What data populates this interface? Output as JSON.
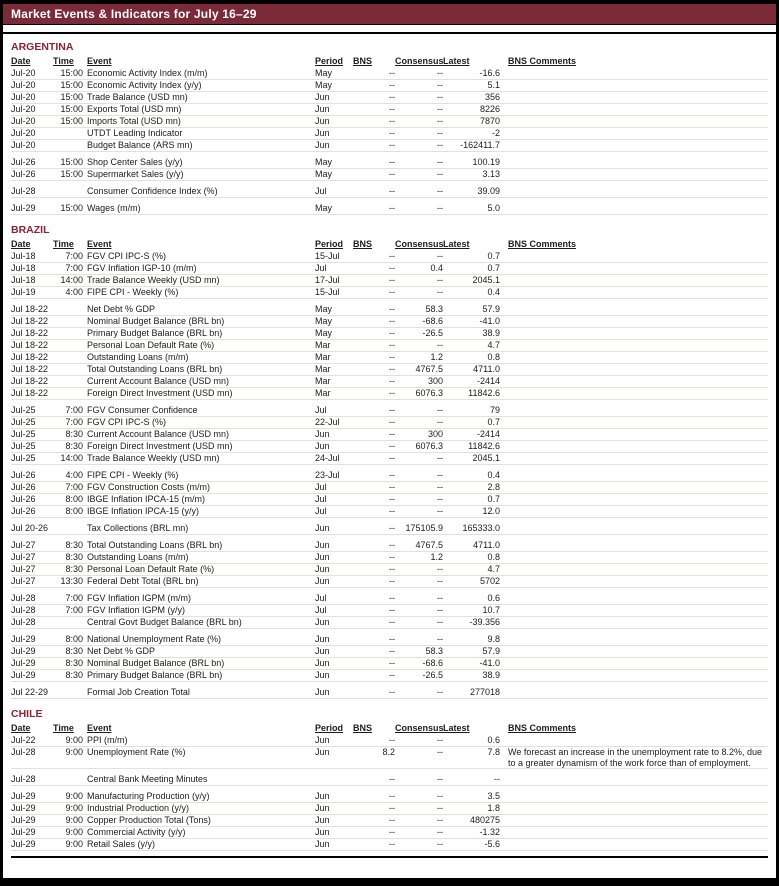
{
  "page": {
    "title": "Market Events & Indicators for July 16–29"
  },
  "colors": {
    "title_bar_bg": "#7B2A38",
    "title_text": "#FFFFFF",
    "section_heading": "#8B2332",
    "rule": "#000000",
    "row_line": "#E4E0DC"
  },
  "table": {
    "columns": [
      {
        "key": "date",
        "label": "Date"
      },
      {
        "key": "time",
        "label": "Time"
      },
      {
        "key": "event",
        "label": "Event"
      },
      {
        "key": "period",
        "label": "Period"
      },
      {
        "key": "bns",
        "label": "BNS"
      },
      {
        "key": "consensus",
        "label": "Consensus"
      },
      {
        "key": "latest",
        "label": "Latest"
      },
      {
        "key": "comments",
        "label": "BNS Comments"
      }
    ]
  },
  "sections": [
    {
      "name": "ARGENTINA",
      "groups": [
        [
          {
            "date": "Jul-20",
            "time": "15:00",
            "event": "Economic Activity Index (m/m)",
            "period": "May",
            "bns": "--",
            "consensus": "--",
            "latest": "-16.6",
            "comments": ""
          },
          {
            "date": "Jul-20",
            "time": "15:00",
            "event": "Economic Activity Index (y/y)",
            "period": "May",
            "bns": "--",
            "consensus": "--",
            "latest": "5.1",
            "comments": ""
          },
          {
            "date": "Jul-20",
            "time": "15:00",
            "event": "Trade Balance (USD mn)",
            "period": "Jun",
            "bns": "--",
            "consensus": "--",
            "latest": "356",
            "comments": ""
          },
          {
            "date": "Jul-20",
            "time": "15:00",
            "event": "Exports Total (USD mn)",
            "period": "Jun",
            "bns": "--",
            "consensus": "--",
            "latest": "8226",
            "comments": ""
          },
          {
            "date": "Jul-20",
            "time": "15:00",
            "event": "Imports Total (USD mn)",
            "period": "Jun",
            "bns": "--",
            "consensus": "--",
            "latest": "7870",
            "comments": ""
          },
          {
            "date": "Jul-20",
            "time": "",
            "event": "UTDT Leading Indicator",
            "period": "Jun",
            "bns": "--",
            "consensus": "--",
            "latest": "-2",
            "comments": ""
          },
          {
            "date": "Jul-20",
            "time": "",
            "event": "Budget Balance (ARS mn)",
            "period": "Jun",
            "bns": "--",
            "consensus": "--",
            "latest": "-162411.7",
            "comments": ""
          }
        ],
        [
          {
            "date": "Jul-26",
            "time": "15:00",
            "event": "Shop Center Sales (y/y)",
            "period": "May",
            "bns": "--",
            "consensus": "--",
            "latest": "100.19",
            "comments": ""
          },
          {
            "date": "Jul-26",
            "time": "15:00",
            "event": "Supermarket Sales (y/y)",
            "period": "May",
            "bns": "--",
            "consensus": "--",
            "latest": "3.13",
            "comments": ""
          }
        ],
        [
          {
            "date": "Jul-28",
            "time": "",
            "event": "Consumer Confidence Index (%)",
            "period": "Jul",
            "bns": "--",
            "consensus": "--",
            "latest": "39.09",
            "comments": ""
          }
        ],
        [
          {
            "date": "Jul-29",
            "time": "15:00",
            "event": "Wages (m/m)",
            "period": "May",
            "bns": "--",
            "consensus": "--",
            "latest": "5.0",
            "comments": ""
          }
        ]
      ]
    },
    {
      "name": "BRAZIL",
      "groups": [
        [
          {
            "date": "Jul-18",
            "time": "7:00",
            "event": "FGV CPI IPC-S (%)",
            "period": "15-Jul",
            "bns": "--",
            "consensus": "--",
            "latest": "0.7",
            "comments": ""
          },
          {
            "date": "Jul-18",
            "time": "7:00",
            "event": "FGV Inflation IGP-10 (m/m)",
            "period": "Jul",
            "bns": "--",
            "consensus": "0.4",
            "latest": "0.7",
            "comments": ""
          },
          {
            "date": "Jul-18",
            "time": "14:00",
            "event": "Trade Balance Weekly (USD mn)",
            "period": "17-Jul",
            "bns": "--",
            "consensus": "--",
            "latest": "2045.1",
            "comments": ""
          },
          {
            "date": "Jul-19",
            "time": "4:00",
            "event": "FIPE CPI - Weekly (%)",
            "period": "15-Jul",
            "bns": "--",
            "consensus": "--",
            "latest": "0.4",
            "comments": ""
          }
        ],
        [
          {
            "date": "Jul 18-22",
            "time": "",
            "event": "Net Debt % GDP",
            "period": "May",
            "bns": "--",
            "consensus": "58.3",
            "latest": "57.9",
            "comments": ""
          },
          {
            "date": "Jul 18-22",
            "time": "",
            "event": "Nominal Budget Balance (BRL bn)",
            "period": "May",
            "bns": "--",
            "consensus": "-68.6",
            "latest": "-41.0",
            "comments": ""
          },
          {
            "date": "Jul 18-22",
            "time": "",
            "event": "Primary Budget Balance (BRL bn)",
            "period": "May",
            "bns": "--",
            "consensus": "-26.5",
            "latest": "38.9",
            "comments": ""
          },
          {
            "date": "Jul 18-22",
            "time": "",
            "event": "Personal Loan Default Rate (%)",
            "period": "Mar",
            "bns": "--",
            "consensus": "--",
            "latest": "4.7",
            "comments": ""
          },
          {
            "date": "Jul 18-22",
            "time": "",
            "event": "Outstanding Loans (m/m)",
            "period": "Mar",
            "bns": "--",
            "consensus": "1.2",
            "latest": "0.8",
            "comments": ""
          },
          {
            "date": "Jul 18-22",
            "time": "",
            "event": "Total Outstanding Loans (BRL bn)",
            "period": "Mar",
            "bns": "--",
            "consensus": "4767.5",
            "latest": "4711.0",
            "comments": ""
          },
          {
            "date": "Jul 18-22",
            "time": "",
            "event": "Current Account Balance (USD mn)",
            "period": "Mar",
            "bns": "--",
            "consensus": "300",
            "latest": "-2414",
            "comments": ""
          },
          {
            "date": "Jul 18-22",
            "time": "",
            "event": "Foreign Direct Investment (USD mn)",
            "period": "Mar",
            "bns": "--",
            "consensus": "6076.3",
            "latest": "11842.6",
            "comments": ""
          }
        ],
        [
          {
            "date": "Jul-25",
            "time": "7:00",
            "event": "FGV Consumer Confidence",
            "period": "Jul",
            "bns": "--",
            "consensus": "--",
            "latest": "79",
            "comments": ""
          },
          {
            "date": "Jul-25",
            "time": "7:00",
            "event": "FGV CPI IPC-S (%)",
            "period": "22-Jul",
            "bns": "--",
            "consensus": "--",
            "latest": "0.7",
            "comments": ""
          },
          {
            "date": "Jul-25",
            "time": "8:30",
            "event": "Current Account Balance (USD mn)",
            "period": "Jun",
            "bns": "--",
            "consensus": "300",
            "latest": "-2414",
            "comments": ""
          },
          {
            "date": "Jul-25",
            "time": "8:30",
            "event": "Foreign Direct Investment (USD mn)",
            "period": "Jun",
            "bns": "--",
            "consensus": "6076.3",
            "latest": "11842.6",
            "comments": ""
          },
          {
            "date": "Jul-25",
            "time": "14:00",
            "event": "Trade Balance Weekly (USD mn)",
            "period": "24-Jul",
            "bns": "--",
            "consensus": "--",
            "latest": "2045.1",
            "comments": ""
          }
        ],
        [
          {
            "date": "Jul-26",
            "time": "4:00",
            "event": "FIPE CPI - Weekly (%)",
            "period": "23-Jul",
            "bns": "--",
            "consensus": "--",
            "latest": "0.4",
            "comments": ""
          },
          {
            "date": "Jul-26",
            "time": "7:00",
            "event": "FGV Construction Costs (m/m)",
            "period": "Jul",
            "bns": "--",
            "consensus": "--",
            "latest": "2.8",
            "comments": ""
          },
          {
            "date": "Jul-26",
            "time": "8:00",
            "event": "IBGE Inflation IPCA-15 (m/m)",
            "period": "Jul",
            "bns": "--",
            "consensus": "--",
            "latest": "0.7",
            "comments": ""
          },
          {
            "date": "Jul-26",
            "time": "8:00",
            "event": "IBGE Inflation IPCA-15 (y/y)",
            "period": "Jul",
            "bns": "--",
            "consensus": "--",
            "latest": "12.0",
            "comments": ""
          }
        ],
        [
          {
            "date": "Jul 20-26",
            "time": "",
            "event": "Tax Collections (BRL mn)",
            "period": "Jun",
            "bns": "--",
            "consensus": "175105.9",
            "latest": "165333.0",
            "comments": ""
          }
        ],
        [
          {
            "date": "Jul-27",
            "time": "8:30",
            "event": "Total Outstanding Loans (BRL bn)",
            "period": "Jun",
            "bns": "--",
            "consensus": "4767.5",
            "latest": "4711.0",
            "comments": ""
          },
          {
            "date": "Jul-27",
            "time": "8:30",
            "event": "Outstanding Loans (m/m)",
            "period": "Jun",
            "bns": "--",
            "consensus": "1.2",
            "latest": "0.8",
            "comments": ""
          },
          {
            "date": "Jul-27",
            "time": "8:30",
            "event": "Personal Loan Default Rate (%)",
            "period": "Jun",
            "bns": "--",
            "consensus": "--",
            "latest": "4.7",
            "comments": ""
          },
          {
            "date": "Jul-27",
            "time": "13:30",
            "event": "Federal Debt Total (BRL bn)",
            "period": "Jun",
            "bns": "--",
            "consensus": "--",
            "latest": "5702",
            "comments": ""
          }
        ],
        [
          {
            "date": "Jul-28",
            "time": "7:00",
            "event": "FGV Inflation IGPM (m/m)",
            "period": "Jul",
            "bns": "--",
            "consensus": "--",
            "latest": "0.6",
            "comments": ""
          },
          {
            "date": "Jul-28",
            "time": "7:00",
            "event": "FGV Inflation IGPM (y/y)",
            "period": "Jul",
            "bns": "--",
            "consensus": "--",
            "latest": "10.7",
            "comments": ""
          },
          {
            "date": "Jul-28",
            "time": "",
            "event": "Central Govt Budget Balance (BRL bn)",
            "period": "Jun",
            "bns": "--",
            "consensus": "--",
            "latest": "-39.356",
            "comments": ""
          }
        ],
        [
          {
            "date": "Jul-29",
            "time": "8:00",
            "event": "National Unemployment Rate (%)",
            "period": "Jun",
            "bns": "--",
            "consensus": "--",
            "latest": "9.8",
            "comments": ""
          },
          {
            "date": "Jul-29",
            "time": "8:30",
            "event": "Net Debt % GDP",
            "period": "Jun",
            "bns": "--",
            "consensus": "58.3",
            "latest": "57.9",
            "comments": ""
          },
          {
            "date": "Jul-29",
            "time": "8:30",
            "event": "Nominal Budget Balance (BRL bn)",
            "period": "Jun",
            "bns": "--",
            "consensus": "-68.6",
            "latest": "-41.0",
            "comments": ""
          },
          {
            "date": "Jul-29",
            "time": "8:30",
            "event": "Primary Budget Balance (BRL bn)",
            "period": "Jun",
            "bns": "--",
            "consensus": "-26.5",
            "latest": "38.9",
            "comments": ""
          }
        ],
        [
          {
            "date": "Jul 22-29",
            "time": "",
            "event": "Formal Job Creation Total",
            "period": "Jun",
            "bns": "--",
            "consensus": "--",
            "latest": "277018",
            "comments": ""
          }
        ]
      ]
    },
    {
      "name": "CHILE",
      "groups": [
        [
          {
            "date": "Jul-22",
            "time": "9:00",
            "event": "PPI (m/m)",
            "period": "Jun",
            "bns": "--",
            "consensus": "--",
            "latest": "0.6",
            "comments": ""
          },
          {
            "date": "Jul-28",
            "time": "9:00",
            "event": "Unemployment Rate (%)",
            "period": "Jun",
            "bns": "8.2",
            "consensus": "--",
            "latest": "7.8",
            "comments": "We forecast an increase in the unemployment rate to 8.2%, due to a greater dynamism of the work force than of employment."
          }
        ],
        [
          {
            "date": "Jul-28",
            "time": "",
            "event": "Central Bank Meeting Minutes",
            "period": "",
            "bns": "--",
            "consensus": "--",
            "latest": "--",
            "comments": ""
          }
        ],
        [
          {
            "date": "Jul-29",
            "time": "9:00",
            "event": "Manufacturing Production (y/y)",
            "period": "Jun",
            "bns": "--",
            "consensus": "--",
            "latest": "3.5",
            "comments": ""
          },
          {
            "date": "Jul-29",
            "time": "9:00",
            "event": "Industrial Production (y/y)",
            "period": "Jun",
            "bns": "--",
            "consensus": "--",
            "latest": "1.8",
            "comments": ""
          },
          {
            "date": "Jul-29",
            "time": "9:00",
            "event": "Copper Production Total (Tons)",
            "period": "Jun",
            "bns": "--",
            "consensus": "--",
            "latest": "480275",
            "comments": ""
          },
          {
            "date": "Jul-29",
            "time": "9:00",
            "event": "Commercial Activity (y/y)",
            "period": "Jun",
            "bns": "--",
            "consensus": "--",
            "latest": "-1.32",
            "comments": ""
          },
          {
            "date": "Jul-29",
            "time": "9:00",
            "event": "Retail Sales (y/y)",
            "period": "Jun",
            "bns": "--",
            "consensus": "--",
            "latest": "-5.6",
            "comments": ""
          }
        ]
      ]
    }
  ]
}
